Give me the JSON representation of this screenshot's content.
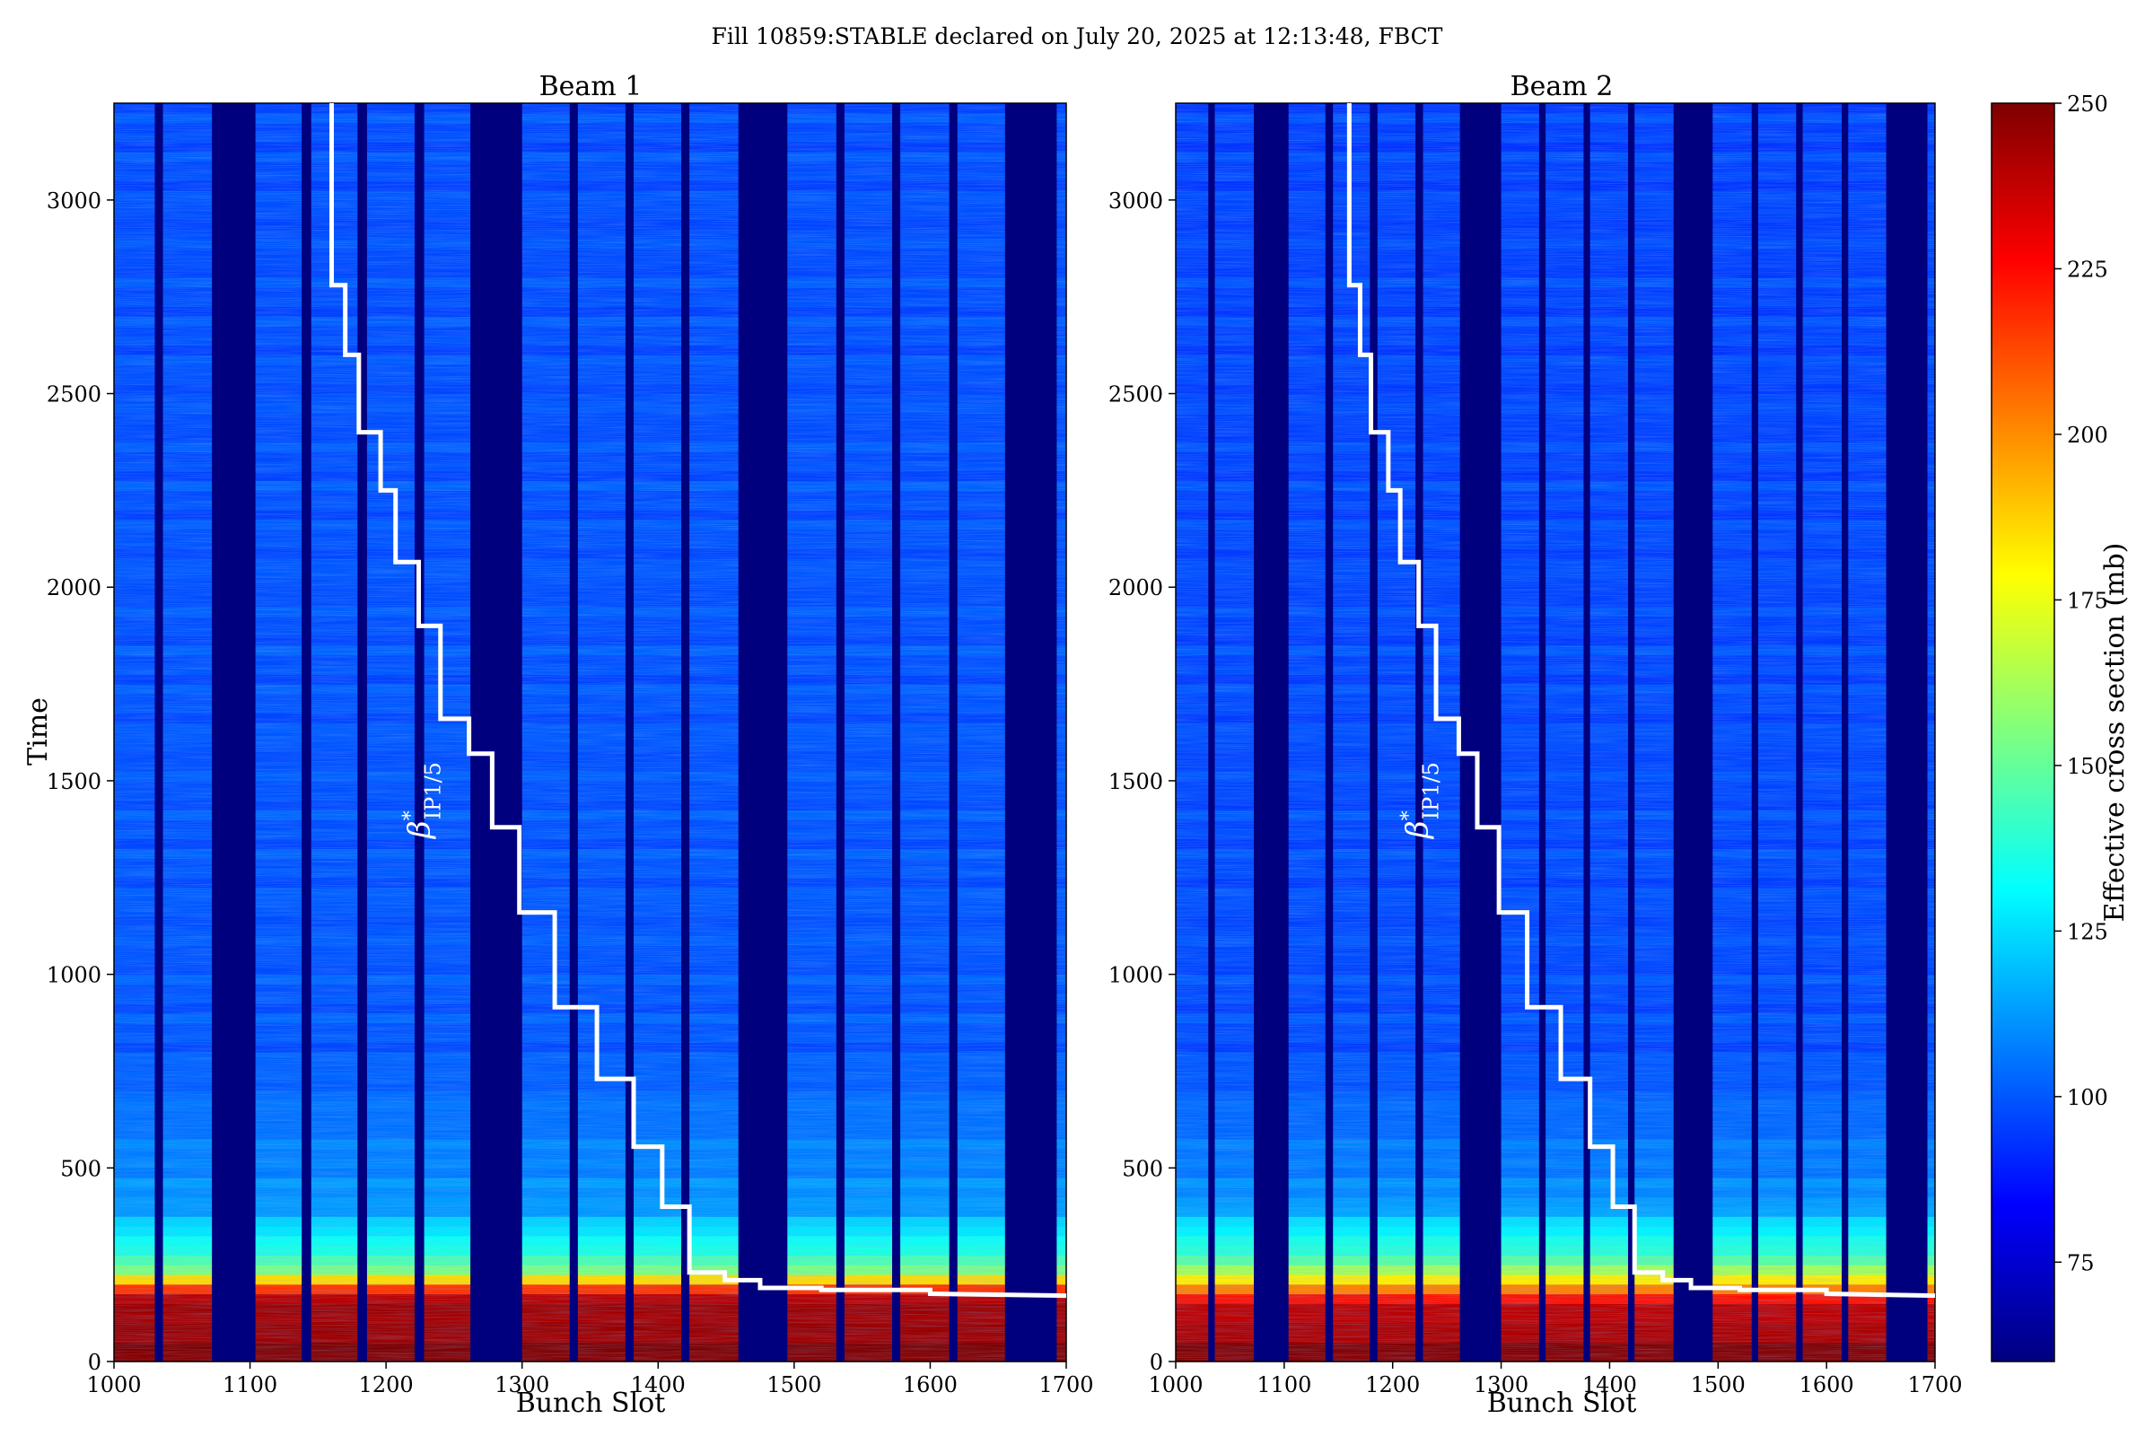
{
  "title": "Fill 10859:STABLE declared on July 20, 2025 at 12:13:48, FBCT",
  "colorbar": {
    "label": "Effective cross section (mb)",
    "ticks": [
      75,
      100,
      125,
      150,
      175,
      200,
      225,
      250
    ],
    "range": [
      60,
      250
    ],
    "colormap": [
      "#00007f",
      "#0000ff",
      "#007fff",
      "#00ffff",
      "#7fff7f",
      "#ffff00",
      "#ff7f00",
      "#ff0000",
      "#7f0000"
    ]
  },
  "annotation_label": "β*IP1/5",
  "annotation_parts": {
    "base": "β",
    "sup": "*",
    "sub": "IP1/5"
  },
  "chart_data": [
    {
      "type": "heatmap",
      "title": "Beam 1",
      "xlabel": "Bunch Slot",
      "ylabel": "Time",
      "xlim": [
        1000,
        1700
      ],
      "ylim": [
        0,
        3250
      ],
      "xticks": [
        1000,
        1100,
        1200,
        1300,
        1400,
        1500,
        1600,
        1700
      ],
      "yticks": [
        0,
        500,
        1000,
        1500,
        2000,
        2500,
        3000
      ],
      "empty_slot_gaps": [
        [
          1030,
          1036
        ],
        [
          1072,
          1104
        ],
        [
          1138,
          1145
        ],
        [
          1179,
          1186
        ],
        [
          1221,
          1228
        ],
        [
          1262,
          1300
        ],
        [
          1335,
          1341
        ],
        [
          1376,
          1382
        ],
        [
          1417,
          1423
        ],
        [
          1459,
          1495
        ],
        [
          1531,
          1537
        ],
        [
          1572,
          1578
        ],
        [
          1614,
          1620
        ],
        [
          1655,
          1693
        ]
      ],
      "value_profile_by_time": [
        {
          "t": 0,
          "mb": 250
        },
        {
          "t": 170,
          "mb": 240
        },
        {
          "t": 240,
          "mb": 150
        },
        {
          "t": 400,
          "mb": 112
        },
        {
          "t": 800,
          "mb": 100
        },
        {
          "t": 3250,
          "mb": 98
        }
      ],
      "beta_star_step_line": {
        "x": [
          1160,
          1160,
          1170,
          1170,
          1180,
          1180,
          1196,
          1196,
          1207,
          1207,
          1224,
          1224,
          1240,
          1240,
          1261,
          1261,
          1278,
          1278,
          1298,
          1298,
          1324,
          1324,
          1355,
          1355,
          1382,
          1382,
          1403,
          1403,
          1423,
          1423,
          1449,
          1449,
          1475,
          1475,
          1520,
          1520,
          1600,
          1600,
          1700
        ],
        "y": [
          3250,
          2780,
          2780,
          2600,
          2600,
          2400,
          2400,
          2250,
          2250,
          2065,
          2065,
          1900,
          1900,
          1660,
          1660,
          1570,
          1570,
          1380,
          1380,
          1160,
          1160,
          915,
          915,
          730,
          730,
          555,
          555,
          400,
          400,
          230,
          230,
          210,
          210,
          190,
          190,
          185,
          185,
          175,
          170
        ]
      }
    },
    {
      "type": "heatmap",
      "title": "Beam 2",
      "xlabel": "Bunch Slot",
      "xlim": [
        1000,
        1700
      ],
      "ylim": [
        0,
        3250
      ],
      "xticks": [
        1000,
        1100,
        1200,
        1300,
        1400,
        1500,
        1600,
        1700
      ],
      "yticks": [
        0,
        500,
        1000,
        1500,
        2000,
        2500,
        3000
      ],
      "empty_slot_gaps": [
        [
          1030,
          1036
        ],
        [
          1072,
          1104
        ],
        [
          1138,
          1145
        ],
        [
          1179,
          1186
        ],
        [
          1221,
          1228
        ],
        [
          1262,
          1300
        ],
        [
          1335,
          1341
        ],
        [
          1376,
          1382
        ],
        [
          1417,
          1423
        ],
        [
          1459,
          1495
        ],
        [
          1531,
          1537
        ],
        [
          1572,
          1578
        ],
        [
          1614,
          1620
        ],
        [
          1655,
          1693
        ]
      ],
      "value_profile_by_time": [
        {
          "t": 0,
          "mb": 250
        },
        {
          "t": 150,
          "mb": 235
        },
        {
          "t": 250,
          "mb": 150
        },
        {
          "t": 420,
          "mb": 110
        },
        {
          "t": 800,
          "mb": 98
        },
        {
          "t": 3250,
          "mb": 96
        }
      ],
      "beta_star_step_line": {
        "x": [
          1160,
          1160,
          1170,
          1170,
          1180,
          1180,
          1196,
          1196,
          1207,
          1207,
          1224,
          1224,
          1240,
          1240,
          1261,
          1261,
          1278,
          1278,
          1298,
          1298,
          1324,
          1324,
          1355,
          1355,
          1382,
          1382,
          1403,
          1403,
          1423,
          1423,
          1449,
          1449,
          1475,
          1475,
          1520,
          1520,
          1600,
          1600,
          1700
        ],
        "y": [
          3250,
          2780,
          2780,
          2600,
          2600,
          2400,
          2400,
          2250,
          2250,
          2065,
          2065,
          1900,
          1900,
          1660,
          1660,
          1570,
          1570,
          1380,
          1380,
          1160,
          1160,
          915,
          915,
          730,
          730,
          555,
          555,
          400,
          400,
          230,
          230,
          210,
          210,
          190,
          190,
          185,
          185,
          175,
          170
        ]
      }
    }
  ]
}
